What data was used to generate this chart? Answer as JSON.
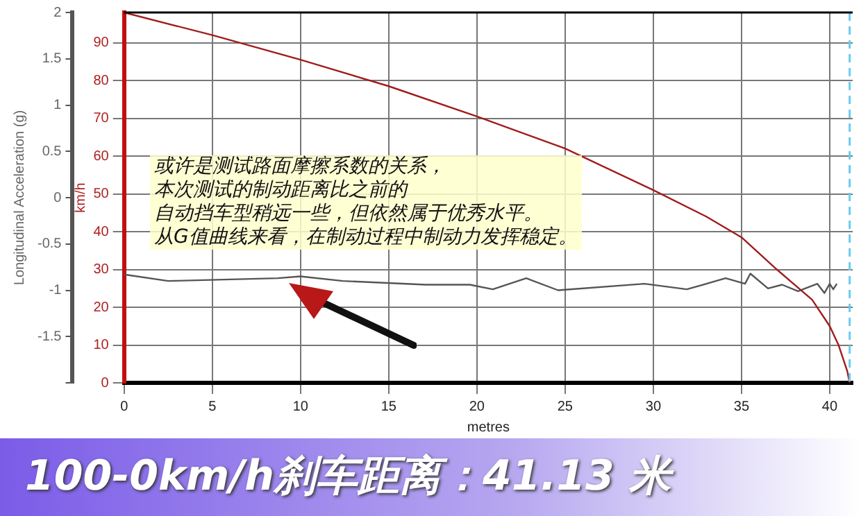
{
  "chart_data": {
    "type": "line",
    "xlabel": "metres",
    "ylabel": "Longitudinal Acceleration (g)",
    "y2label": "km/h",
    "xlim": [
      0,
      41.3
    ],
    "xticks": [
      0,
      5,
      10,
      15,
      20,
      25,
      30,
      35,
      40
    ],
    "ylim": [
      -2,
      2
    ],
    "yticks": [
      {
        "value": -2,
        "label": null
      },
      -1.5,
      -1,
      -0.5,
      0,
      0.5,
      1,
      1.5,
      2
    ],
    "y2lim": [
      0,
      98
    ],
    "y2ticks": [
      0,
      10,
      20,
      30,
      40,
      50,
      60,
      70,
      80,
      90
    ],
    "grid": true,
    "legend": false,
    "marker": "none",
    "line_style": "solid",
    "series": [
      {
        "color": "#a01c1c",
        "axis": "y2",
        "x": [
          0,
          5,
          10,
          15,
          20,
          25,
          30,
          33,
          35,
          37,
          38,
          39,
          40,
          40.5,
          41,
          41.13
        ],
        "values": [
          98,
          92,
          85.5,
          78.5,
          70.5,
          62,
          51,
          44,
          38.5,
          30,
          26,
          22,
          15,
          10,
          3,
          0
        ]
      },
      {
        "color": "#555555",
        "axis": "y",
        "x": [
          0,
          2.5,
          8.7,
          10,
          12.4,
          17.1,
          19.6,
          20.9,
          22.8,
          24.6,
          29.5,
          31.9,
          34.1,
          35.2,
          35.5,
          36.5,
          37.3,
          38.2,
          39.3,
          39.7,
          40,
          40.2,
          40.4
        ],
        "values": [
          -0.83,
          -0.9,
          -0.87,
          -0.85,
          -0.9,
          -0.94,
          -0.94,
          -0.99,
          -0.87,
          -1.0,
          -0.93,
          -0.99,
          -0.87,
          -0.93,
          -0.82,
          -0.98,
          -0.94,
          -1.01,
          -0.93,
          -1.03,
          -0.93,
          -0.99,
          -0.93
        ]
      }
    ],
    "ref_lines": [
      {
        "axis": "x",
        "value": 41.13,
        "color": "#66ccee",
        "line_style": "dashed"
      }
    ],
    "annotations": [
      "或许是测试路面摩擦系数的关系，",
      "本次测试的制动距离比之前的",
      "自动挡车型稍远一些，但依然属于优秀水平。",
      "从G值曲线来看，在制动过程中制动力发挥稳定。",
      "100-0km/h刹车距离：41.13 米"
    ]
  }
}
